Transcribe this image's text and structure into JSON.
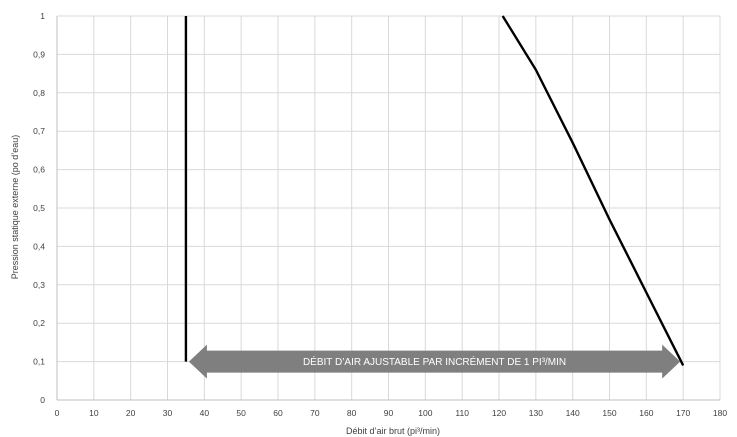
{
  "chart_data": {
    "type": "line",
    "xlabel": "Débit d’air brut (pi³/min)",
    "ylabel": "Pression statique externe (po d’eau)",
    "xlim": [
      0,
      180
    ],
    "ylim": [
      0,
      1
    ],
    "x_ticks": [
      "0",
      "10",
      "20",
      "30",
      "40",
      "50",
      "60",
      "70",
      "80",
      "90",
      "100",
      "110",
      "120",
      "130",
      "140",
      "150",
      "160",
      "170",
      "180"
    ],
    "y_ticks": [
      "0",
      "0,1",
      "0,2",
      "0,3",
      "0,4",
      "0,5",
      "0,6",
      "0,7",
      "0,8",
      "0,9",
      "1"
    ],
    "grid": true,
    "series": [
      {
        "points": [
          [
            35,
            0.1
          ],
          [
            35,
            1.0
          ]
        ]
      },
      {
        "points": [
          [
            121,
            1.0
          ],
          [
            130,
            0.86
          ],
          [
            140,
            0.67
          ],
          [
            150,
            0.47
          ],
          [
            160,
            0.28
          ],
          [
            170,
            0.09
          ]
        ]
      }
    ],
    "annotation": {
      "text": "DÉBIT D’AIR AJUSTABLE PAR INCRÉMENT DE 1 PI³/MIN",
      "x_range": [
        35,
        170
      ],
      "y": 0.1,
      "color": "#7f7f7f"
    },
    "line_color": "#000000",
    "grid_color": "#d9d9d9"
  }
}
